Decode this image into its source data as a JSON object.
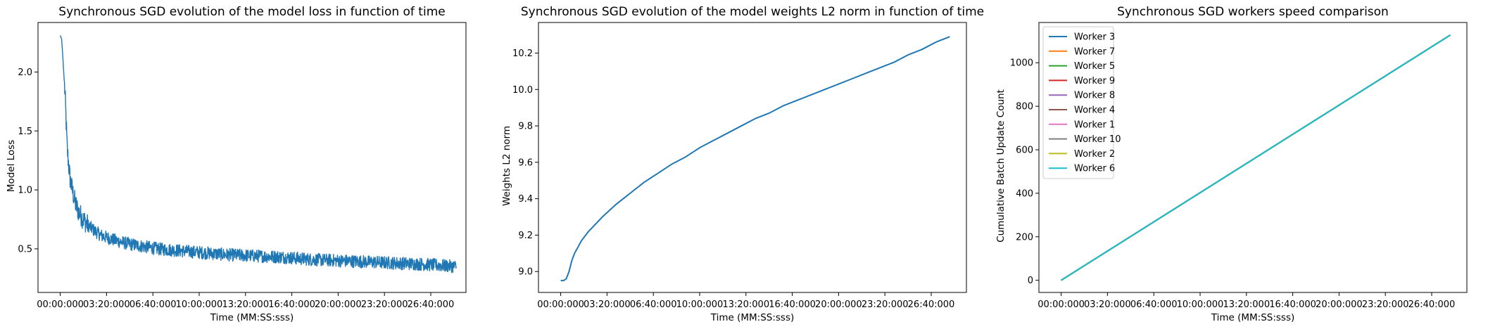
{
  "figure": {
    "background": "#ffffff"
  },
  "chart_data": [
    {
      "type": "line",
      "title": "Synchronous SGD evolution of the model loss in function of time",
      "xlabel": "Time (MM:SS:sss)",
      "ylabel": "Model Loss",
      "xlim": [
        -1.6,
        29.2
      ],
      "ylim": [
        0.13,
        2.42
      ],
      "xticks": [
        0,
        3.333,
        6.667,
        10,
        13.333,
        16.667,
        20,
        23.333,
        26.667
      ],
      "xtick_labels": [
        "00:00:000",
        "03:20:000",
        "06:40:000",
        "10:00:000",
        "13:20:000",
        "16:40:000",
        "20:00:000",
        "23:20:000",
        "26:40:000"
      ],
      "yticks": [
        0.5,
        1.0,
        1.5,
        2.0
      ],
      "ytick_labels": [
        "0.5",
        "1.0",
        "1.5",
        "2.0"
      ],
      "grid": false,
      "series": [
        {
          "color": "#1f77b4",
          "noise": "high-frequency fluctuation about the curve, amplitude ~0.03-0.08",
          "x": [
            0,
            0.1,
            0.2,
            0.35,
            0.5,
            0.7,
            0.9,
            1.1,
            1.3,
            1.6,
            2.0,
            2.5,
            3.0,
            4.0,
            5.0,
            6.0,
            7.0,
            8.0,
            9.0,
            10.0,
            12.0,
            14.0,
            16.0,
            18.0,
            20.0,
            22.0,
            24.0,
            26.0,
            28.5
          ],
          "y": [
            2.31,
            2.28,
            2.1,
            1.8,
            1.35,
            1.1,
            0.98,
            0.88,
            0.82,
            0.76,
            0.7,
            0.65,
            0.61,
            0.57,
            0.54,
            0.52,
            0.5,
            0.49,
            0.48,
            0.47,
            0.45,
            0.44,
            0.43,
            0.41,
            0.4,
            0.39,
            0.38,
            0.37,
            0.35
          ]
        }
      ]
    },
    {
      "type": "line",
      "title": "Synchronous SGD evolution of the model weights L2 norm in function of time",
      "xlabel": "Time (MM:SS:sss)",
      "ylabel": "Weights L2 norm",
      "xlim": [
        -1.6,
        29.2
      ],
      "ylim": [
        8.885,
        10.368
      ],
      "xticks": [
        0,
        3.333,
        6.667,
        10,
        13.333,
        16.667,
        20,
        23.333,
        26.667
      ],
      "xtick_labels": [
        "00:00:000",
        "03:20:000",
        "06:40:000",
        "10:00:000",
        "13:20:000",
        "16:40:000",
        "20:00:000",
        "23:20:000",
        "26:40:000"
      ],
      "yticks": [
        9.0,
        9.2,
        9.4,
        9.6,
        9.8,
        10.0,
        10.2
      ],
      "ytick_labels": [
        "9.0",
        "9.2",
        "9.4",
        "9.6",
        "9.8",
        "10.0",
        "10.2"
      ],
      "grid": false,
      "series": [
        {
          "color": "#1f77b4",
          "x": [
            0,
            0.2,
            0.4,
            0.6,
            0.8,
            1.0,
            1.5,
            2.0,
            3.0,
            4.0,
            5.0,
            6.0,
            7.0,
            8.0,
            9.0,
            10.0,
            11.0,
            12.0,
            13.0,
            14.0,
            15.0,
            16.0,
            17.0,
            18.0,
            19.0,
            20.0,
            21.0,
            22.0,
            23.0,
            24.0,
            25.0,
            26.0,
            27.0,
            28.0
          ],
          "y": [
            8.95,
            8.95,
            8.96,
            9.0,
            9.06,
            9.1,
            9.17,
            9.22,
            9.3,
            9.37,
            9.43,
            9.49,
            9.54,
            9.59,
            9.63,
            9.68,
            9.72,
            9.76,
            9.8,
            9.84,
            9.87,
            9.91,
            9.94,
            9.97,
            10.0,
            10.03,
            10.06,
            10.09,
            10.12,
            10.15,
            10.19,
            10.22,
            10.26,
            10.29
          ]
        }
      ]
    },
    {
      "type": "line",
      "title": "Synchronous SGD workers speed comparison",
      "xlabel": "Time (MM:SS:sss)",
      "ylabel": "Cumulative Batch Update Count",
      "xlim": [
        -1.6,
        29.2
      ],
      "ylim": [
        -56,
        1185
      ],
      "xticks": [
        0,
        3.333,
        6.667,
        10,
        13.333,
        16.667,
        20,
        23.333,
        26.667
      ],
      "xtick_labels": [
        "00:00:000",
        "03:20:000",
        "06:40:000",
        "10:00:000",
        "13:20:000",
        "16:40:000",
        "20:00:000",
        "23:20:000",
        "26:40:000"
      ],
      "yticks": [
        0,
        200,
        400,
        600,
        800,
        1000
      ],
      "ytick_labels": [
        "0",
        "200",
        "400",
        "600",
        "800",
        "1000"
      ],
      "grid": false,
      "legend_position": "upper-left",
      "series": [
        {
          "name": "Worker 3",
          "color": "#1f77b4",
          "x": [
            0,
            28.0
          ],
          "y": [
            0,
            1127
          ]
        },
        {
          "name": "Worker 7",
          "color": "#ff7f0e",
          "x": [
            0,
            28.0
          ],
          "y": [
            0,
            1127
          ]
        },
        {
          "name": "Worker 5",
          "color": "#2ca02c",
          "x": [
            0,
            28.0
          ],
          "y": [
            0,
            1127
          ]
        },
        {
          "name": "Worker 9",
          "color": "#d62728",
          "x": [
            0,
            28.0
          ],
          "y": [
            0,
            1127
          ]
        },
        {
          "name": "Worker 8",
          "color": "#9467bd",
          "x": [
            0,
            28.0
          ],
          "y": [
            0,
            1127
          ]
        },
        {
          "name": "Worker 4",
          "color": "#8c564b",
          "x": [
            0,
            28.0
          ],
          "y": [
            0,
            1127
          ]
        },
        {
          "name": "Worker 1",
          "color": "#e377c2",
          "x": [
            0,
            28.0
          ],
          "y": [
            0,
            1127
          ]
        },
        {
          "name": "Worker 10",
          "color": "#7f7f7f",
          "x": [
            0,
            28.0
          ],
          "y": [
            0,
            1127
          ]
        },
        {
          "name": "Worker 2",
          "color": "#bcbd22",
          "x": [
            0,
            28.0
          ],
          "y": [
            0,
            1127
          ]
        },
        {
          "name": "Worker 6",
          "color": "#17becf",
          "x": [
            0,
            28.0
          ],
          "y": [
            0,
            1127
          ]
        }
      ]
    }
  ]
}
